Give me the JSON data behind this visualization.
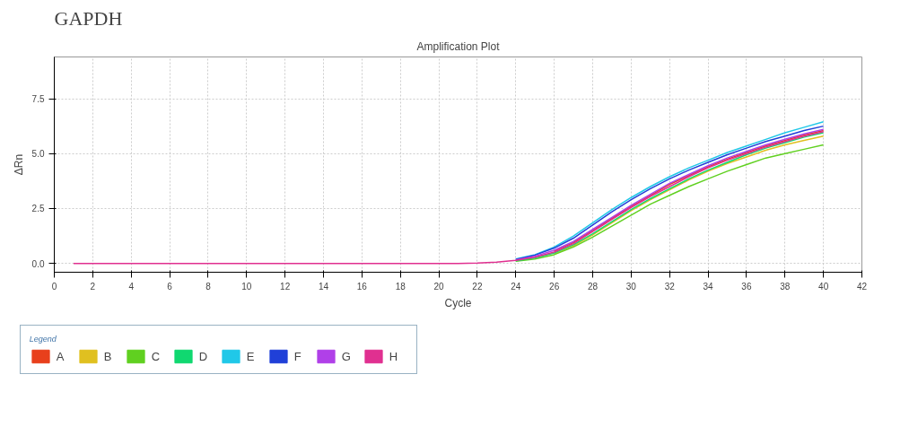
{
  "chart_data": {
    "type": "line",
    "title": "GAPDH",
    "subtitle": "Amplification Plot",
    "xlabel": "Cycle",
    "ylabel": "ΔRn",
    "legend_title": "Legend",
    "legend": "bottom",
    "grid": true,
    "marker": "none",
    "line_style": "solid",
    "xlim": [
      0,
      42
    ],
    "xticks": [
      0,
      2,
      4,
      6,
      8,
      10,
      12,
      14,
      16,
      18,
      20,
      22,
      24,
      26,
      28,
      30,
      32,
      34,
      36,
      38,
      40,
      42
    ],
    "ylim": [
      -0.4,
      9.4
    ],
    "yticks": [
      {
        "value": 0,
        "label": "0.0"
      },
      {
        "value": 2.5,
        "label": "2.5"
      },
      {
        "value": 5,
        "label": "5.0"
      },
      {
        "value": 7.5,
        "label": "7.5"
      }
    ],
    "x": [
      1,
      21,
      22,
      23,
      24,
      25,
      26,
      27,
      28,
      29,
      30,
      31,
      32,
      33,
      34,
      35,
      36,
      37,
      38,
      39,
      40
    ],
    "series": [
      {
        "name": "A",
        "color": "#e8401c",
        "values": [
          null,
          null,
          null,
          null,
          null,
          null,
          0.55,
          0.95,
          1.5,
          2.05,
          2.6,
          3.1,
          3.6,
          4.0,
          4.4,
          4.75,
          5.05,
          5.35,
          5.6,
          5.85,
          6.05
        ]
      },
      {
        "name": "B",
        "color": "#e0c020",
        "values": [
          null,
          null,
          null,
          null,
          null,
          null,
          0.42,
          0.8,
          1.3,
          1.85,
          2.4,
          2.9,
          3.35,
          3.8,
          4.2,
          4.55,
          4.85,
          5.15,
          5.4,
          5.6,
          5.8
        ]
      },
      {
        "name": "C",
        "color": "#60d020",
        "values": [
          null,
          null,
          null,
          null,
          0.1,
          0.2,
          0.4,
          0.75,
          1.2,
          1.7,
          2.2,
          2.7,
          3.1,
          3.5,
          3.85,
          4.2,
          4.5,
          4.8,
          5.0,
          5.2,
          5.4
        ]
      },
      {
        "name": "D",
        "color": "#10d870",
        "values": [
          null,
          null,
          null,
          null,
          0.12,
          0.25,
          0.48,
          0.85,
          1.35,
          1.9,
          2.45,
          2.95,
          3.4,
          3.85,
          4.25,
          4.6,
          4.95,
          5.25,
          5.5,
          5.75,
          5.95
        ]
      },
      {
        "name": "E",
        "color": "#20c8e8",
        "values": [
          null,
          null,
          null,
          null,
          0.2,
          0.4,
          0.75,
          1.25,
          1.85,
          2.45,
          3.0,
          3.5,
          3.95,
          4.35,
          4.7,
          5.05,
          5.35,
          5.65,
          5.95,
          6.2,
          6.45
        ]
      },
      {
        "name": "F",
        "color": "#2040d8",
        "values": [
          null,
          null,
          null,
          null,
          0.18,
          0.38,
          0.7,
          1.15,
          1.75,
          2.35,
          2.9,
          3.4,
          3.85,
          4.25,
          4.6,
          4.95,
          5.25,
          5.55,
          5.8,
          6.05,
          6.25
        ]
      },
      {
        "name": "G",
        "color": "#b040e8",
        "values": [
          null,
          null,
          null,
          null,
          0.16,
          0.33,
          0.6,
          1.0,
          1.55,
          2.1,
          2.65,
          3.15,
          3.65,
          4.05,
          4.45,
          4.8,
          5.1,
          5.4,
          5.65,
          5.9,
          6.1
        ]
      },
      {
        "name": "H",
        "color": "#e03090",
        "values": [
          0,
          0,
          0.02,
          0.06,
          0.14,
          0.28,
          0.52,
          0.9,
          1.45,
          2.0,
          2.55,
          3.05,
          3.5,
          3.95,
          4.35,
          4.7,
          5.0,
          5.3,
          5.55,
          5.8,
          6.0
        ]
      }
    ]
  }
}
